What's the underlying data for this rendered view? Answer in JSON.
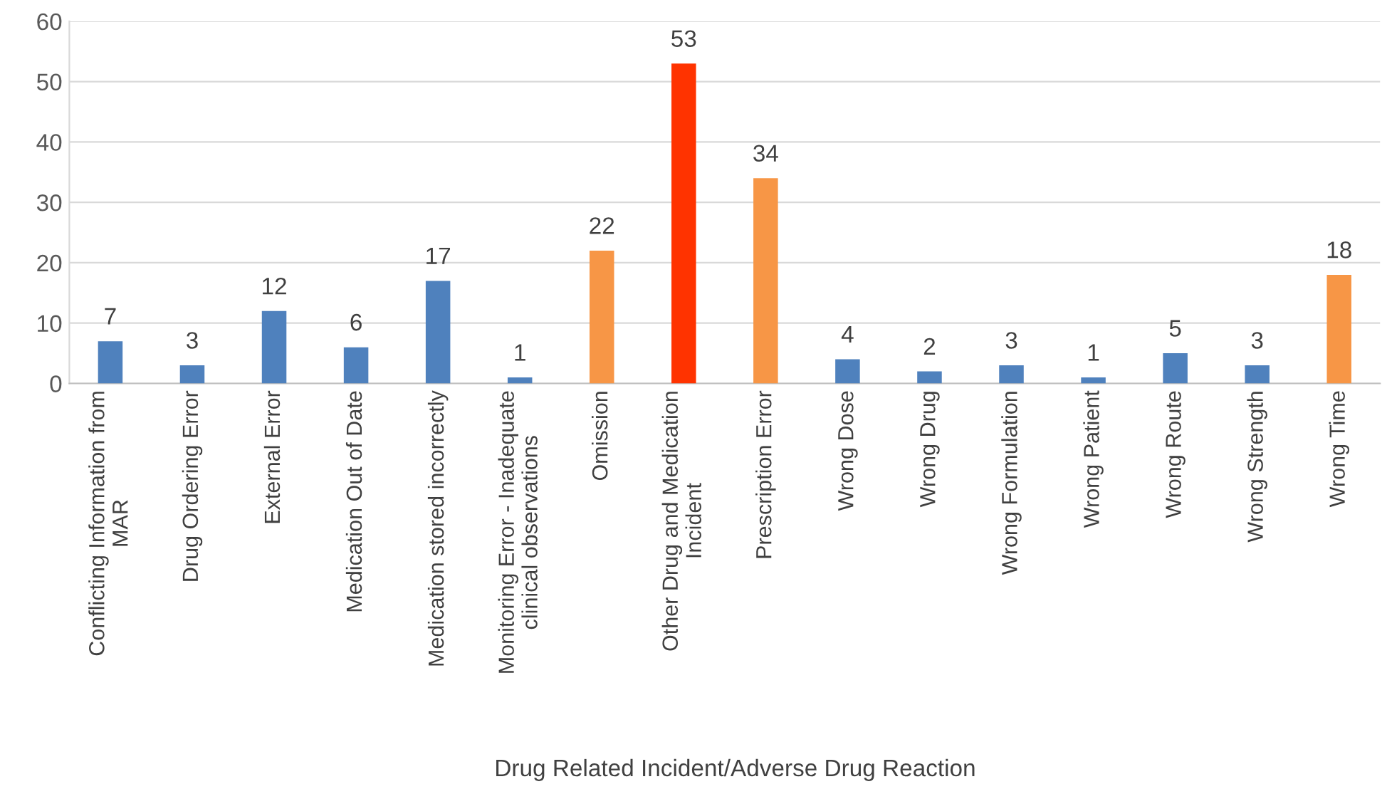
{
  "chart_data": {
    "type": "bar",
    "xlabel": "Drug Related Incident/Adverse Drug Reaction",
    "categories": [
      "Conflicting Information from\nMAR",
      "Drug Ordering Error",
      "External Error",
      "Medication Out of Date",
      "Medication stored incorrectly",
      "Monitoring Error - Inadequate\nclinical observations",
      "Omission",
      "Other Drug and Medication\nIncident",
      "Prescription Error",
      "Wrong Dose",
      "Wrong Drug",
      "Wrong Formulation",
      "Wrong Patient",
      "Wrong Route",
      "Wrong Strength",
      "Wrong Time"
    ],
    "values": [
      7,
      3,
      12,
      6,
      17,
      1,
      22,
      53,
      34,
      4,
      2,
      3,
      1,
      5,
      3,
      18
    ],
    "colors": [
      "#4f81bd",
      "#4f81bd",
      "#4f81bd",
      "#4f81bd",
      "#4f81bd",
      "#4f81bd",
      "#f79646",
      "#ff3300",
      "#f79646",
      "#4f81bd",
      "#4f81bd",
      "#4f81bd",
      "#4f81bd",
      "#4f81bd",
      "#4f81bd",
      "#f79646"
    ],
    "ylim": [
      0,
      60
    ],
    "yticks": [
      0,
      10,
      20,
      30,
      40,
      50,
      60
    ],
    "grid": "y",
    "data_labels": true
  }
}
